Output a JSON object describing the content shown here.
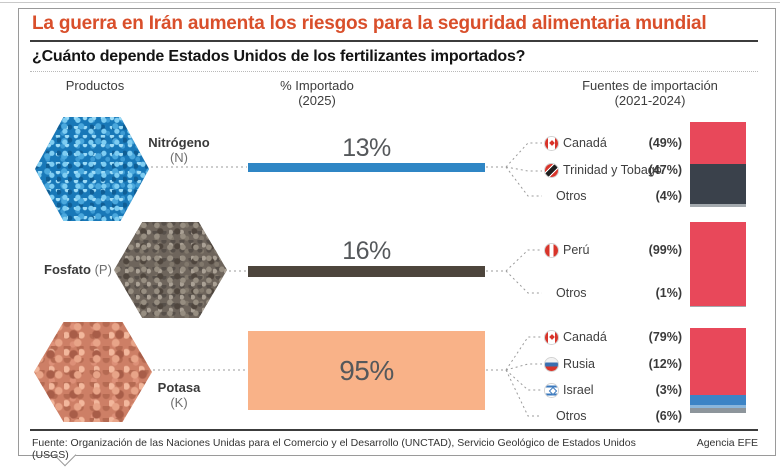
{
  "header": {
    "title": "La guerra en Irán aumenta los riesgos para la seguridad alimentaria mundial",
    "subtitle": "¿Cuánto depende Estados Unidos de los fertilizantes importados?"
  },
  "columns": {
    "products": "Productos",
    "imported": "% Importado",
    "imported_year": "(2025)",
    "sources": "Fuentes de importación",
    "sources_year": "(2021-2024)"
  },
  "rows": [
    {
      "product": "Nitrógeno",
      "symbol": "(N)",
      "imported_pct": "13%",
      "imported_value": 13,
      "bar_color": "#2f86c5",
      "sources": [
        {
          "country": "Canadá",
          "pct": "(49%)",
          "value": 49,
          "flag": "canada",
          "color": "#e8485a"
        },
        {
          "country": "Trinidad y Tobago",
          "pct": "(47%)",
          "value": 47,
          "flag": "trinidad",
          "color": "#3a414b"
        },
        {
          "country": "Otros",
          "pct": "(4%)",
          "value": 4,
          "flag": "none",
          "color": "#a3a9ae"
        }
      ]
    },
    {
      "product": "Fosfato",
      "symbol": "(P)",
      "imported_pct": "16%",
      "imported_value": 16,
      "bar_color": "#4d453c",
      "sources": [
        {
          "country": "Perú",
          "pct": "(99%)",
          "value": 99,
          "flag": "peru",
          "color": "#e8485a"
        },
        {
          "country": "Otros",
          "pct": "(1%)",
          "value": 1,
          "flag": "none",
          "color": "#a3a9ae"
        }
      ]
    },
    {
      "product": "Potasa",
      "symbol": "(K)",
      "imported_pct": "95%",
      "imported_value": 95,
      "bar_color": "#f9b288",
      "sources": [
        {
          "country": "Canadá",
          "pct": "(79%)",
          "value": 79,
          "flag": "canada",
          "color": "#e8485a"
        },
        {
          "country": "Rusia",
          "pct": "(12%)",
          "value": 12,
          "flag": "russia",
          "color": "#3c84c6"
        },
        {
          "country": "Israel",
          "pct": "(3%)",
          "value": 3,
          "flag": "israel",
          "color": "#8ab6dc"
        },
        {
          "country": "Otros",
          "pct": "(6%)",
          "value": 6,
          "flag": "none",
          "color": "#8d959b"
        }
      ]
    }
  ],
  "footer": {
    "source": "Fuente: Organización de las Naciones Unidas para el Comercio y el Desarrollo (UNCTAD), Servicio Geológico de Estados Unidos (USGS)",
    "agency": "Agencia EFE"
  },
  "chart_data": {
    "type": "bar",
    "title": "¿Cuánto depende Estados Unidos de los fertilizantes importados?",
    "categories": [
      "Nitrógeno (N)",
      "Fosfato (P)",
      "Potasa (K)"
    ],
    "values": [
      13,
      16,
      95
    ],
    "value_unit": "% Importado (2025)",
    "breakdown_label": "Fuentes de importación (2021-2024)",
    "breakdown": [
      {
        "category": "Nitrógeno (N)",
        "sources": [
          {
            "name": "Canadá",
            "pct": 49
          },
          {
            "name": "Trinidad y Tobago",
            "pct": 47
          },
          {
            "name": "Otros",
            "pct": 4
          }
        ]
      },
      {
        "category": "Fosfato (P)",
        "sources": [
          {
            "name": "Perú",
            "pct": 99
          },
          {
            "name": "Otros",
            "pct": 1
          }
        ]
      },
      {
        "category": "Potasa (K)",
        "sources": [
          {
            "name": "Canadá",
            "pct": 79
          },
          {
            "name": "Rusia",
            "pct": 12
          },
          {
            "name": "Israel",
            "pct": 3
          },
          {
            "name": "Otros",
            "pct": 6
          }
        ]
      }
    ],
    "legend_position": "inline-right",
    "grid": false
  }
}
